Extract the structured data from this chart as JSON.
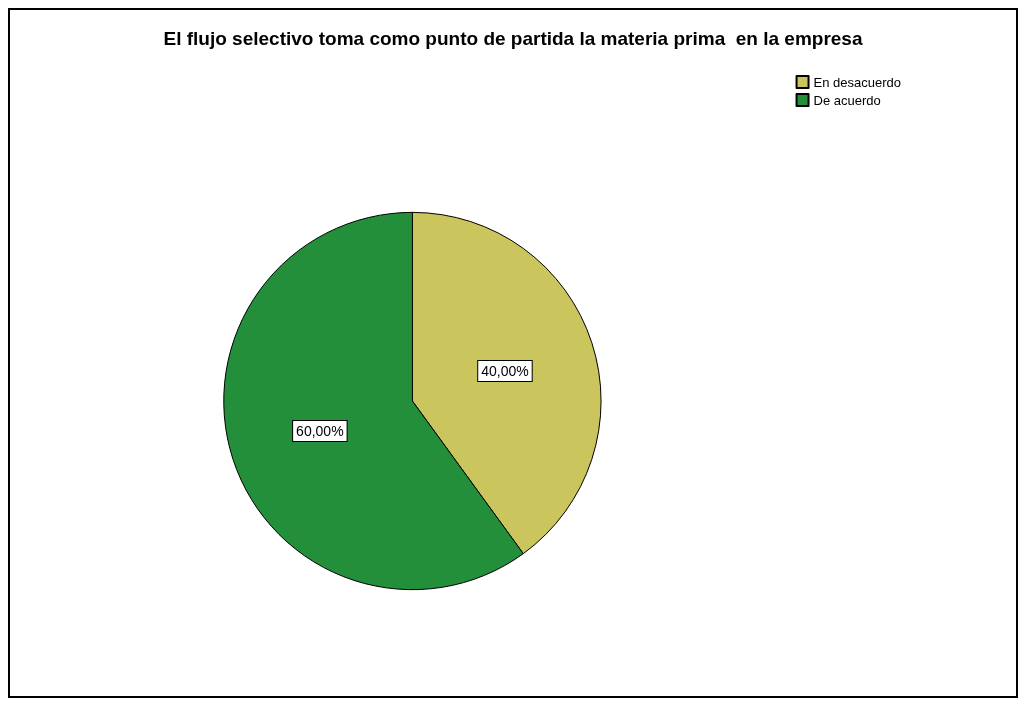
{
  "chart_data": {
    "type": "pie",
    "title": "El flujo selectivo toma como punto de partida la materia prima  en la empresa",
    "categories": [
      "En desacuerdo",
      "De acuerdo"
    ],
    "values": [
      40,
      60
    ],
    "colors": [
      "#cbc55e",
      "#248f3a"
    ],
    "value_labels": [
      "40,00%",
      "60,00%"
    ],
    "legend": "top right"
  }
}
